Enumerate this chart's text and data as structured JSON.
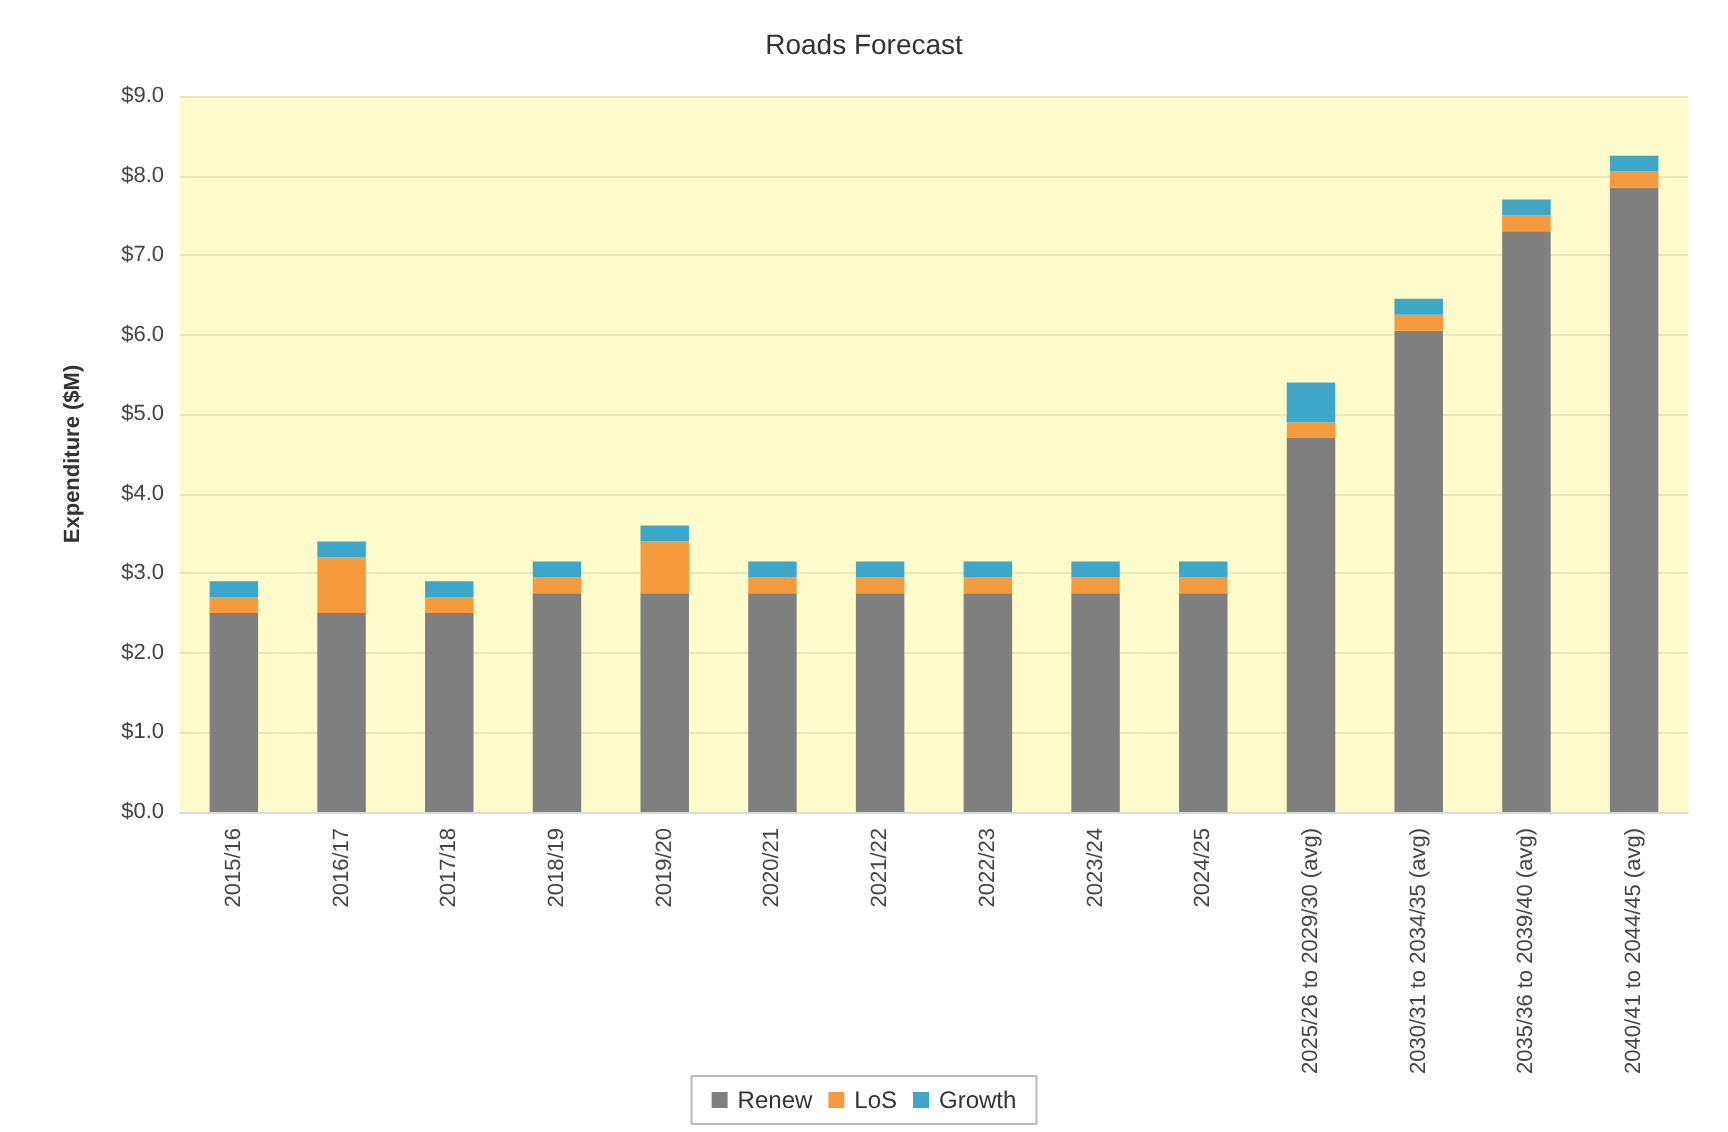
{
  "chart_data": {
    "type": "bar",
    "title": "Roads Forecast",
    "ylabel": "Expenditure ($M)",
    "stacked": true,
    "grid": "y",
    "legend": "bottom",
    "categories": [
      "2015/16",
      "2016/17",
      "2017/18",
      "2018/19",
      "2019/20",
      "2020/21",
      "2021/22",
      "2022/23",
      "2023/24",
      "2024/25",
      "2025/26 to 2029/30 (avg)",
      "2030/31 to 2034/35 (avg)",
      "2035/36 to 2039/40 (avg)",
      "2040/41 to 2044/45 (avg)"
    ],
    "series": [
      {
        "name": "Renew",
        "color": "#7f7f7f",
        "values": [
          2.5,
          2.5,
          2.5,
          2.75,
          2.75,
          2.75,
          2.75,
          2.75,
          2.75,
          2.75,
          4.7,
          6.05,
          7.3,
          7.85
        ]
      },
      {
        "name": "LoS",
        "color": "#f59a3d",
        "values": [
          0.2,
          0.7,
          0.2,
          0.2,
          0.65,
          0.2,
          0.2,
          0.2,
          0.2,
          0.2,
          0.2,
          0.2,
          0.2,
          0.2
        ]
      },
      {
        "name": "Growth",
        "color": "#3ea6c8",
        "values": [
          0.2,
          0.2,
          0.2,
          0.2,
          0.2,
          0.2,
          0.2,
          0.2,
          0.2,
          0.2,
          0.5,
          0.2,
          0.2,
          0.2
        ]
      }
    ],
    "ylim": [
      0,
      9
    ],
    "yticks": [
      {
        "value": 0,
        "label": "$0.0"
      },
      {
        "value": 1,
        "label": "$1.0"
      },
      {
        "value": 2,
        "label": "$2.0"
      },
      {
        "value": 3,
        "label": "$3.0"
      },
      {
        "value": 4,
        "label": "$4.0"
      },
      {
        "value": 5,
        "label": "$5.0"
      },
      {
        "value": 6,
        "label": "$6.0"
      },
      {
        "value": 7,
        "label": "$7.0"
      },
      {
        "value": 8,
        "label": "$8.0"
      },
      {
        "value": 9,
        "label": "$9.0"
      }
    ]
  }
}
